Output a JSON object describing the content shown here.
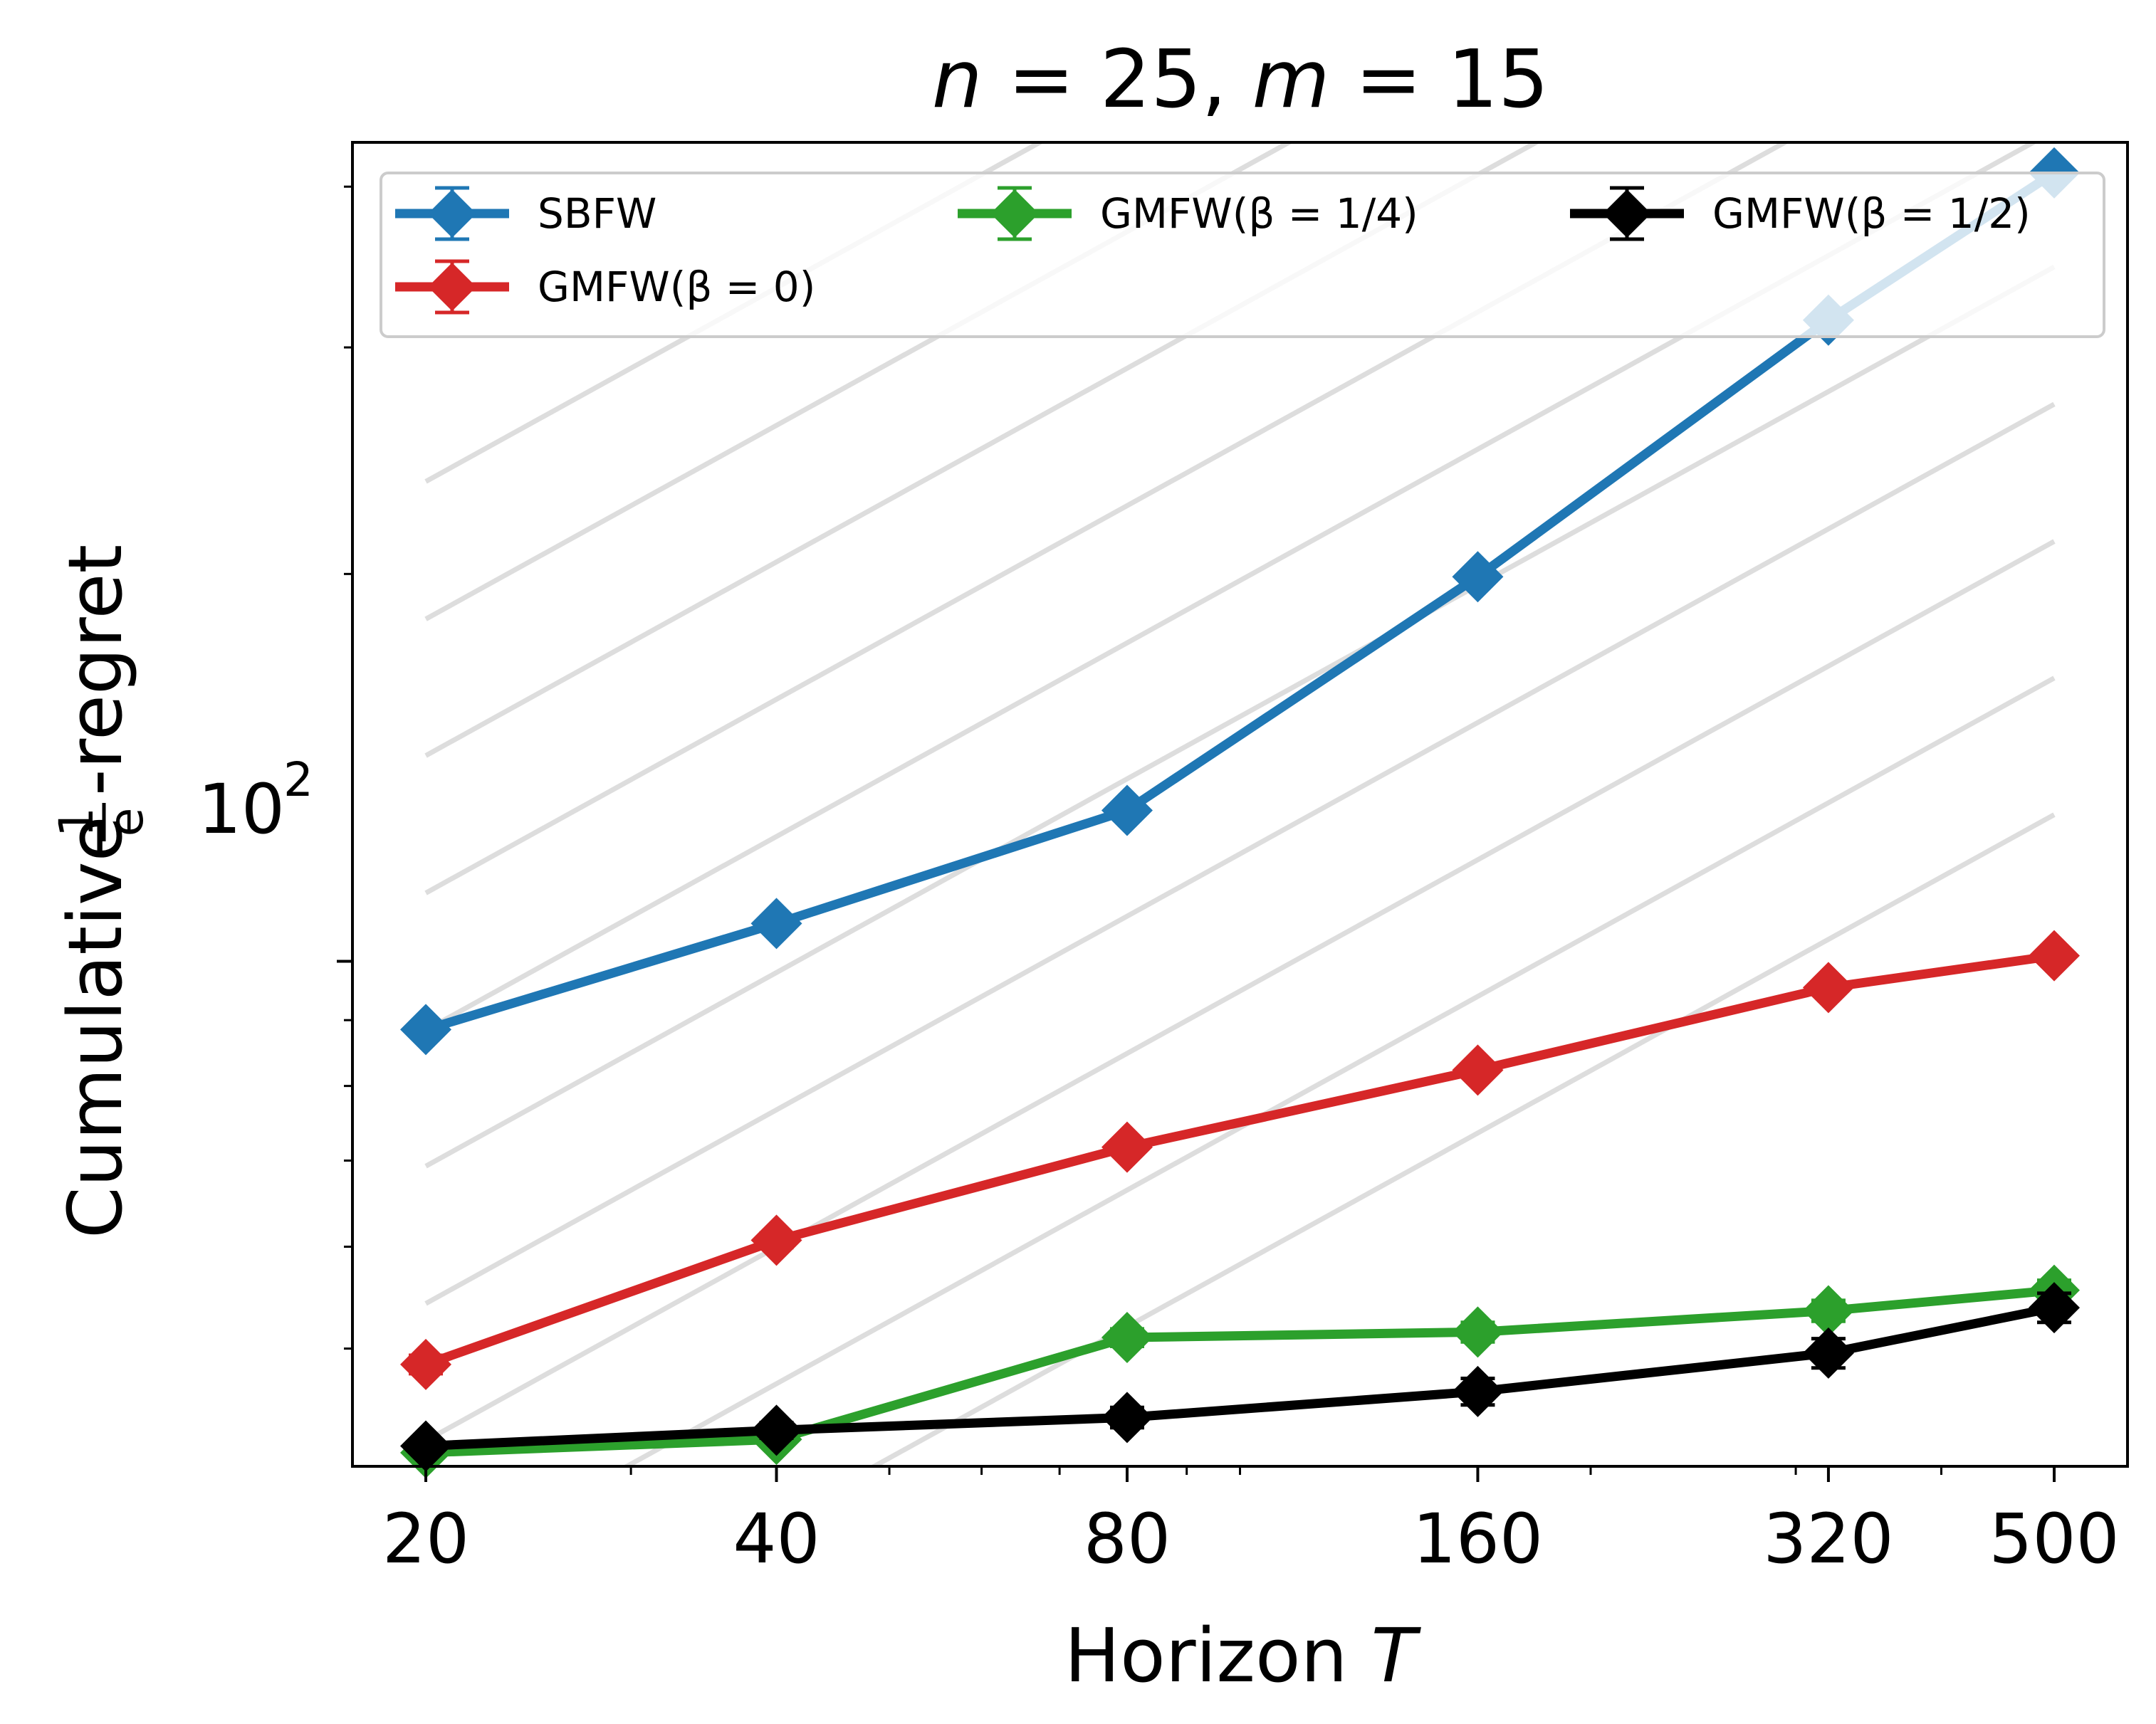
{
  "chart_data": {
    "type": "line",
    "title_parts": {
      "n_var": "n",
      "eq1": " = 25, ",
      "m_var": "m",
      "eq2": " = 15"
    },
    "xlabel": "Horizon ",
    "xlabel_var": "T",
    "ylabel_prefix": "Cumulative ",
    "ylabel_frac_num": "1",
    "ylabel_frac_den": "e",
    "ylabel_suffix": "-regret",
    "x_scale": "log",
    "y_scale": "log",
    "xlim": [
      17.3,
      578
    ],
    "ylim": [
      40.5,
      433
    ],
    "x_ticks": [
      20,
      40,
      80,
      160,
      320,
      500
    ],
    "x_tick_labels": [
      "20",
      "40",
      "80",
      "160",
      "320",
      "500"
    ],
    "y_tick_label": {
      "base": "10",
      "exp": "2",
      "value": 100
    },
    "grid": false,
    "legend": {
      "placement": "top",
      "columns": 3
    },
    "x": [
      20,
      40,
      80,
      160,
      320,
      500
    ],
    "series": [
      {
        "name": "SBFW",
        "color": "#1f77b4",
        "values": [
          88.5,
          107,
          131,
          199,
          315,
          410
        ],
        "err": [
          0.8,
          0.9,
          1.0,
          1.2,
          1.5,
          2.0
        ]
      },
      {
        "name": "GMFW(β = 0)",
        "color": "#d62728",
        "values": [
          48.6,
          60.7,
          71.7,
          82.3,
          95.4,
          101
        ],
        "err": [
          0.8,
          0.8,
          0.8,
          0.8,
          0.8,
          0.8
        ]
      },
      {
        "name": "GMFW(β = 1/4)",
        "color": "#2ca02c",
        "values": [
          41.5,
          42.5,
          51.0,
          51.5,
          53.5,
          55.5
        ],
        "err": [
          0.5,
          0.5,
          0.8,
          0.9,
          1.0,
          1.0
        ]
      },
      {
        "name": "GMFW(β = 1/2)",
        "color": "#000000",
        "values": [
          42.0,
          43.2,
          44.2,
          46.3,
          49.6,
          53.8
        ],
        "err": [
          0.5,
          0.6,
          0.8,
          1.1,
          1.3,
          1.4
        ]
      }
    ],
    "reference_lines": {
      "color": "#dddddd",
      "slope_loglog": 0.5,
      "values_at_x20": [
        26.0,
        33.2,
        42.4,
        54.2,
        69.3,
        88.4,
        113,
        144.5,
        184.5,
        236
      ]
    }
  }
}
